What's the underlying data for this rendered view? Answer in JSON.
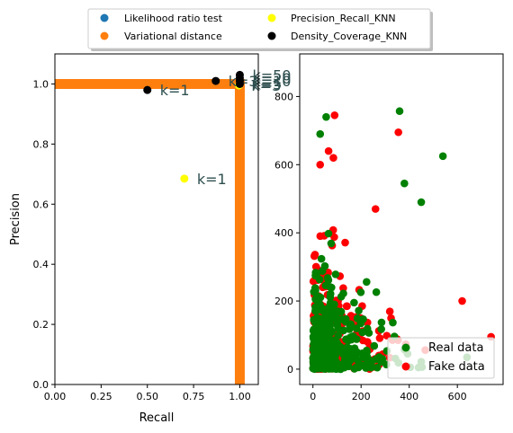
{
  "legend": {
    "entries": [
      {
        "label": "Likelihood ratio test",
        "color": "#1f77b4"
      },
      {
        "label": "Variational distance",
        "color": "#ff7f0e"
      },
      {
        "label": "Precision_Recall_KNN",
        "color": "#ffff00"
      },
      {
        "label": "Density_Coverage_KNN",
        "color": "#000000"
      }
    ]
  },
  "chart_data": [
    {
      "type": "scatter",
      "xlabel": "Recall",
      "ylabel": "Precision",
      "xlim": [
        0.0,
        1.1
      ],
      "ylim": [
        0.0,
        1.1
      ],
      "xticks": [
        "0.00",
        "0.25",
        "0.50",
        "0.75",
        "1.00"
      ],
      "xtick_values": [
        0,
        0.25,
        0.5,
        0.75,
        1.0
      ],
      "yticks": [
        "0.0",
        "0.2",
        "0.4",
        "0.6",
        "0.8",
        "1.0"
      ],
      "ytick_values": [
        0,
        0.2,
        0.4,
        0.6,
        0.8,
        1.0
      ],
      "lines": [
        {
          "name": "Variational distance",
          "color": "#ff7f0e",
          "points": [
            [
              0,
              1.0
            ],
            [
              1.0,
              1.0
            ],
            [
              1.0,
              0
            ]
          ]
        }
      ],
      "series": [
        {
          "name": "Precision_Recall_KNN",
          "color": "#ffff00",
          "points": [
            {
              "x": 0.7,
              "y": 0.685,
              "label": "k=1"
            },
            {
              "x": 0.995,
              "y": 0.995,
              "label": "k=3"
            }
          ]
        },
        {
          "name": "Density_Coverage_KNN",
          "color": "#000000",
          "points": [
            {
              "x": 0.5,
              "y": 0.98,
              "label": "k=1"
            },
            {
              "x": 0.87,
              "y": 1.01,
              "label": "k=3"
            },
            {
              "x": 1.0,
              "y": 1.0,
              "label": "k=5"
            },
            {
              "x": 1.0,
              "y": 1.01,
              "label": "k=10"
            },
            {
              "x": 1.0,
              "y": 1.02,
              "label": "k=20"
            },
            {
              "x": 1.0,
              "y": 1.03,
              "label": "k=50"
            }
          ]
        }
      ]
    },
    {
      "type": "scatter",
      "xlim": [
        -55,
        790
      ],
      "ylim": [
        -45,
        925
      ],
      "xticks": [
        "0",
        "200",
        "400",
        "600"
      ],
      "xtick_values": [
        0,
        200,
        400,
        600
      ],
      "yticks": [
        "0",
        "200",
        "400",
        "600",
        "800"
      ],
      "ytick_values": [
        0,
        200,
        400,
        600,
        800
      ],
      "legend": [
        {
          "label": "Real data",
          "color": "#008000"
        },
        {
          "label": "Fake data",
          "color": "#ff0000"
        }
      ],
      "legend_position": "lower-right",
      "outliers": {
        "real": [
          [
            360,
            757
          ],
          [
            540,
            625
          ],
          [
            30,
            690
          ],
          [
            55,
            740
          ],
          [
            450,
            490
          ],
          [
            380,
            545
          ],
          [
            640,
            35
          ]
        ],
        "fake": [
          [
            90,
            745
          ],
          [
            355,
            695
          ],
          [
            65,
            640
          ],
          [
            85,
            620
          ],
          [
            30,
            600
          ],
          [
            740,
            95
          ],
          [
            260,
            470
          ],
          [
            620,
            200
          ]
        ]
      }
    }
  ]
}
